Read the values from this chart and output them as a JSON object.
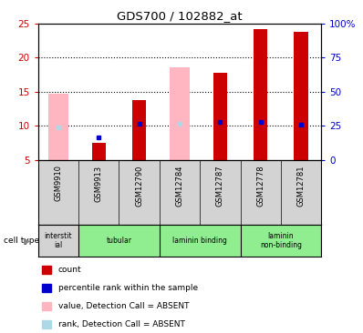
{
  "title": "GDS700 / 102882_at",
  "samples": [
    "GSM9910",
    "GSM9913",
    "GSM12790",
    "GSM12784",
    "GSM12787",
    "GSM12778",
    "GSM12781"
  ],
  "red_bars": [
    null,
    7.5,
    13.7,
    null,
    17.8,
    24.2,
    23.7
  ],
  "pink_bars": [
    14.7,
    null,
    null,
    18.5,
    null,
    null,
    null
  ],
  "blue_dots": [
    9.7,
    8.3,
    10.3,
    10.3,
    10.5,
    10.5,
    10.2
  ],
  "blue_dot_absent": [
    true,
    false,
    false,
    true,
    false,
    false,
    false
  ],
  "ylim_left": [
    5,
    25
  ],
  "ylim_right": [
    0,
    100
  ],
  "yticks_left": [
    5,
    10,
    15,
    20,
    25
  ],
  "yticks_right": [
    0,
    25,
    50,
    75,
    100
  ],
  "ytick_labels_right": [
    "0",
    "25",
    "50",
    "75",
    "100%"
  ],
  "cell_types": [
    {
      "label": "interstit\nial",
      "start": 0,
      "end": 1,
      "color": "#d3d3d3"
    },
    {
      "label": "tubular",
      "start": 1,
      "end": 3,
      "color": "#90ee90"
    },
    {
      "label": "laminin binding",
      "start": 3,
      "end": 5,
      "color": "#90ee90"
    },
    {
      "label": "laminin\nnon-binding",
      "start": 5,
      "end": 7,
      "color": "#90ee90"
    }
  ],
  "bar_width": 0.35,
  "pink_bar_width": 0.5,
  "red_color": "#cc0000",
  "pink_color": "#ffb6c1",
  "blue_color": "#0000cc",
  "light_blue_color": "#add8e6",
  "sample_bg_color": "#d3d3d3",
  "left_axis_color": "#cc0000",
  "right_axis_color": "#0000cc",
  "grid_yticks": [
    10,
    15,
    20
  ],
  "legend_items": [
    {
      "color": "#cc0000",
      "label": "count"
    },
    {
      "color": "#0000cc",
      "label": "percentile rank within the sample"
    },
    {
      "color": "#ffb6c1",
      "label": "value, Detection Call = ABSENT"
    },
    {
      "color": "#add8e6",
      "label": "rank, Detection Call = ABSENT"
    }
  ]
}
